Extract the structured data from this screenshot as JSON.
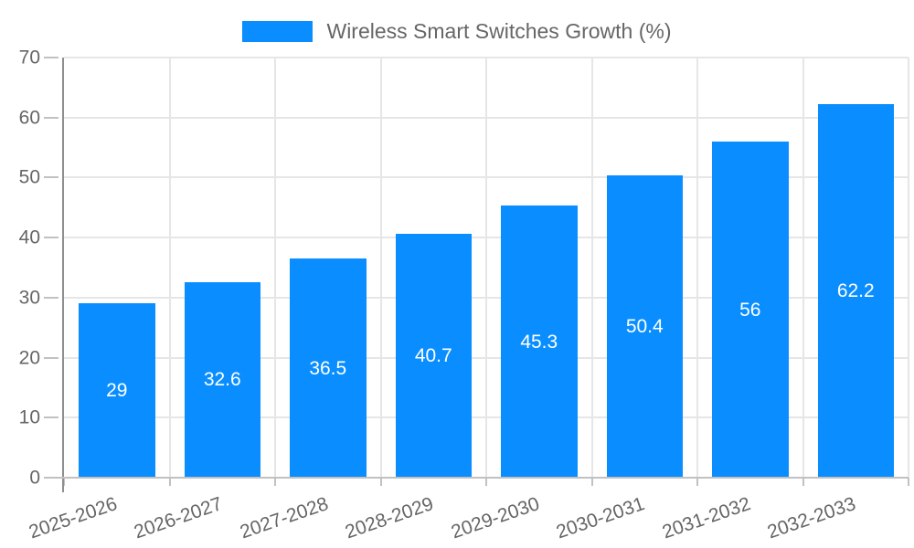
{
  "chart_data": {
    "type": "bar",
    "title": "Wireless Smart Switches Growth (%)",
    "legend": {
      "position": "top",
      "label": "Wireless Smart Switches Growth (%)"
    },
    "categories": [
      "2025-2026",
      "2026-2027",
      "2027-2028",
      "2028-2029",
      "2029-2030",
      "2030-2031",
      "2031-2032",
      "2032-2033"
    ],
    "series": [
      {
        "name": "Wireless Smart Switches Growth (%)",
        "values": [
          29,
          32.6,
          36.5,
          40.7,
          45.3,
          50.4,
          56,
          62.2
        ]
      }
    ],
    "value_labels": [
      "29",
      "32.6",
      "36.5",
      "40.7",
      "45.3",
      "50.4",
      "56",
      "62.2"
    ],
    "xlabel": "",
    "ylabel": "",
    "ylim": [
      0,
      70
    ],
    "yticks": [
      0,
      10,
      20,
      30,
      40,
      50,
      60,
      70
    ],
    "grid": true,
    "bar_label_position": "center",
    "x_tick_rotation_deg": -19,
    "colors": {
      "bar": "#0a8eff",
      "grid": "#e6e6e6",
      "axis_line": "#8f8f8f",
      "tick": "#c1c1c1",
      "tick_label": "#666666",
      "legend_text": "#666666",
      "value_label": "#ffffff",
      "background": "#ffffff"
    }
  }
}
